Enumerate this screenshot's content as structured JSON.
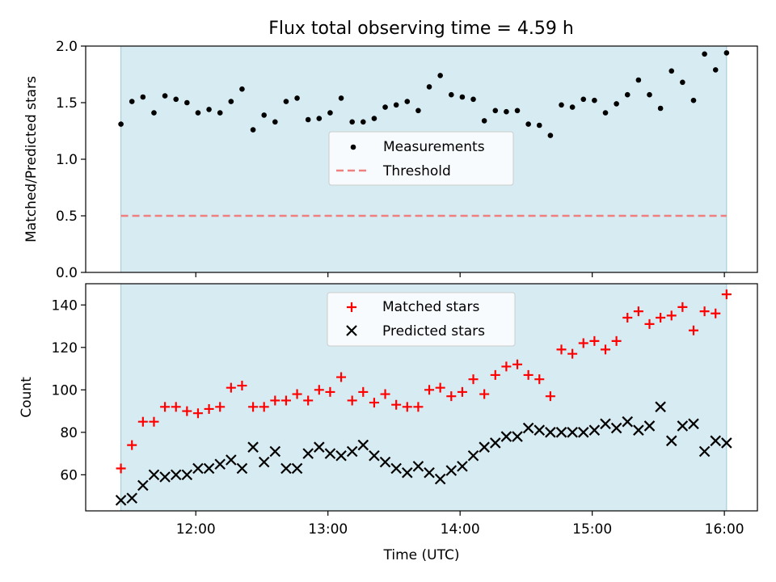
{
  "title": "Flux total observing time = 4.59 h",
  "colors": {
    "band": "#add8e6",
    "matched": "#ff0000",
    "predicted": "#000000",
    "threshold": "#f08080",
    "measurement": "#000000"
  },
  "chart_data": [
    {
      "type": "scatter",
      "ylabel": "Matched/Predicted stars",
      "ylim": [
        0,
        2.0
      ],
      "yticks": [
        "0.0",
        "0.5",
        "1.0",
        "1.5",
        "2.0"
      ],
      "xlim": [
        "11:10",
        "16:15"
      ],
      "observing_window": [
        "11:26",
        "16:01"
      ],
      "legend": {
        "placement": "center",
        "entries": [
          "Measurements",
          "Threshold"
        ]
      },
      "threshold": 0.5,
      "series": [
        {
          "name": "Measurements",
          "x": [
            "11:26",
            "11:31",
            "11:36",
            "11:41",
            "11:46",
            "11:51",
            "11:56",
            "12:01",
            "12:06",
            "12:11",
            "12:16",
            "12:21",
            "12:26",
            "12:31",
            "12:36",
            "12:41",
            "12:46",
            "12:51",
            "12:56",
            "13:01",
            "13:06",
            "13:11",
            "13:16",
            "13:21",
            "13:26",
            "13:31",
            "13:36",
            "13:41",
            "13:46",
            "13:51",
            "13:56",
            "14:01",
            "14:06",
            "14:11",
            "14:16",
            "14:21",
            "14:26",
            "14:31",
            "14:36",
            "14:41",
            "14:46",
            "14:51",
            "14:56",
            "15:01",
            "15:06",
            "15:11",
            "15:16",
            "15:21",
            "15:26",
            "15:31",
            "15:36",
            "15:41",
            "15:46",
            "15:51",
            "15:56",
            "16:01"
          ],
          "values": [
            1.31,
            1.51,
            1.55,
            1.41,
            1.56,
            1.53,
            1.5,
            1.41,
            1.44,
            1.41,
            1.51,
            1.62,
            1.26,
            1.39,
            1.33,
            1.51,
            1.54,
            1.35,
            1.36,
            1.41,
            1.54,
            1.33,
            1.33,
            1.36,
            1.46,
            1.48,
            1.51,
            1.43,
            1.64,
            1.74,
            1.57,
            1.55,
            1.53,
            1.34,
            1.43,
            1.42,
            1.43,
            1.31,
            1.3,
            1.21,
            1.48,
            1.46,
            1.53,
            1.52,
            1.41,
            1.49,
            1.57,
            1.7,
            1.57,
            1.45,
            1.78,
            1.68,
            1.52,
            1.93,
            1.79,
            1.94
          ]
        }
      ]
    },
    {
      "type": "scatter",
      "xlabel": "Time (UTC)",
      "ylabel": "Count",
      "ylim": [
        43,
        150
      ],
      "yticks": [
        "60",
        "80",
        "100",
        "120",
        "140"
      ],
      "xticks": [
        "12:00",
        "13:00",
        "14:00",
        "15:00",
        "16:00"
      ],
      "xlim": [
        "11:10",
        "16:15"
      ],
      "observing_window": [
        "11:26",
        "16:01"
      ],
      "legend": {
        "placement": "upper center",
        "entries": [
          "Matched stars",
          "Predicted stars"
        ]
      },
      "x": [
        "11:26",
        "11:31",
        "11:36",
        "11:41",
        "11:46",
        "11:51",
        "11:56",
        "12:01",
        "12:06",
        "12:11",
        "12:16",
        "12:21",
        "12:26",
        "12:31",
        "12:36",
        "12:41",
        "12:46",
        "12:51",
        "12:56",
        "13:01",
        "13:06",
        "13:11",
        "13:16",
        "13:21",
        "13:26",
        "13:31",
        "13:36",
        "13:41",
        "13:46",
        "13:51",
        "13:56",
        "14:01",
        "14:06",
        "14:11",
        "14:16",
        "14:21",
        "14:26",
        "14:31",
        "14:36",
        "14:41",
        "14:46",
        "14:51",
        "14:56",
        "15:01",
        "15:06",
        "15:11",
        "15:16",
        "15:21",
        "15:26",
        "15:31",
        "15:36",
        "15:41",
        "15:46",
        "15:51",
        "15:56",
        "16:01"
      ],
      "series": [
        {
          "name": "Matched stars",
          "values": [
            63,
            74,
            85,
            85,
            92,
            92,
            90,
            89,
            91,
            92,
            101,
            102,
            92,
            92,
            95,
            95,
            98,
            95,
            100,
            99,
            106,
            95,
            99,
            94,
            98,
            93,
            92,
            92,
            100,
            101,
            97,
            99,
            105,
            98,
            107,
            111,
            112,
            107,
            105,
            97,
            119,
            117,
            122,
            123,
            119,
            123,
            134,
            137,
            131,
            134,
            135,
            139,
            128,
            137,
            136,
            145
          ]
        },
        {
          "name": "Predicted stars",
          "values": [
            48,
            49,
            55,
            60,
            59,
            60,
            60,
            63,
            63,
            65,
            67,
            63,
            73,
            66,
            71,
            63,
            63,
            70,
            73,
            70,
            69,
            71,
            74,
            69,
            66,
            63,
            61,
            64,
            61,
            58,
            62,
            64,
            69,
            73,
            75,
            78,
            78,
            82,
            81,
            80,
            80,
            80,
            80,
            81,
            84,
            82,
            85,
            81,
            83,
            92,
            76,
            83,
            84,
            71,
            76,
            75
          ]
        }
      ]
    }
  ]
}
